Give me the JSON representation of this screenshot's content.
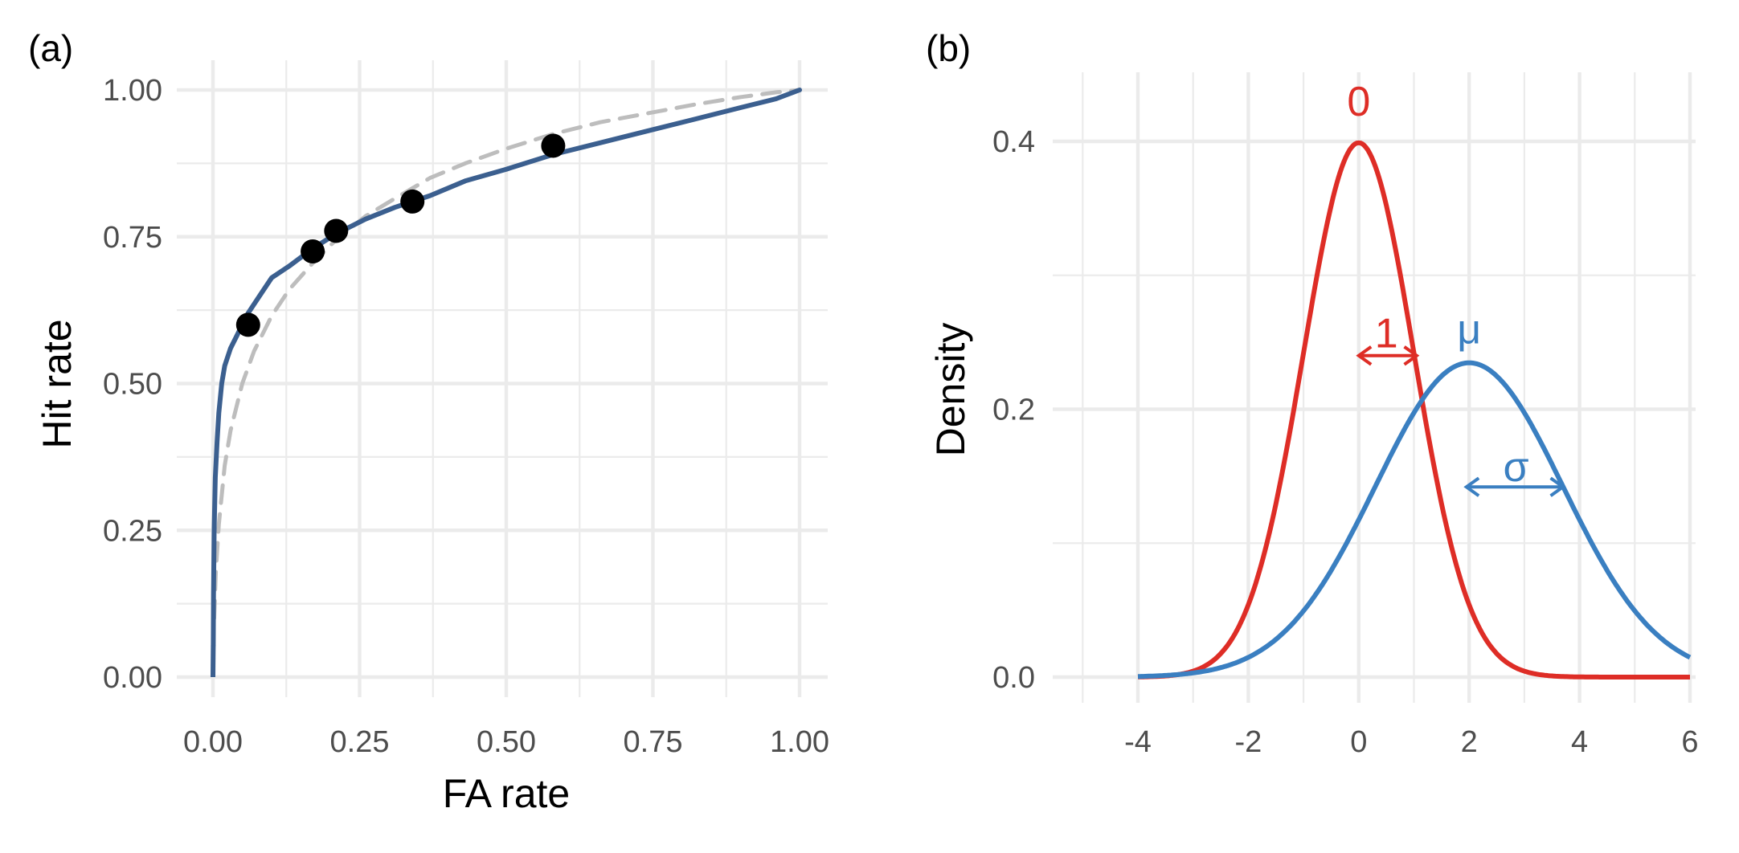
{
  "chart_data": [
    {
      "panel_tag": "(a)",
      "type": "line",
      "xlabel": "FA rate",
      "ylabel": "Hit rate",
      "xlim": [
        0,
        1
      ],
      "ylim": [
        0,
        1
      ],
      "x_ticks": [
        "0.00",
        "0.25",
        "0.50",
        "0.75",
        "1.00"
      ],
      "y_ticks": [
        "0.00",
        "0.25",
        "0.50",
        "0.75",
        "1.00"
      ],
      "grid": true,
      "colors": {
        "fitted": "#3b5f8f",
        "dashed": "#bdbdbd",
        "points": "#000000"
      },
      "series": [
        {
          "style": "solid",
          "color": "#3b5f8f",
          "x": [
            0.0005,
            0.001,
            0.002,
            0.004,
            0.007,
            0.01,
            0.015,
            0.02,
            0.03,
            0.04,
            0.05,
            0.06,
            0.08,
            0.1,
            0.13,
            0.17,
            0.21,
            0.26,
            0.31,
            0.37,
            0.43,
            0.5,
            0.58,
            0.66,
            0.74,
            0.82,
            0.9,
            0.96,
            1.0
          ],
          "y": [
            0.054,
            0.14,
            0.25,
            0.34,
            0.4,
            0.45,
            0.5,
            0.53,
            0.56,
            0.58,
            0.6,
            0.62,
            0.65,
            0.68,
            0.7,
            0.73,
            0.755,
            0.78,
            0.8,
            0.82,
            0.845,
            0.865,
            0.89,
            0.91,
            0.93,
            0.95,
            0.97,
            0.985,
            1.0
          ]
        },
        {
          "style": "dashed",
          "color": "#bdbdbd",
          "x": [
            0.002,
            0.005,
            0.01,
            0.02,
            0.03,
            0.05,
            0.07,
            0.1,
            0.13,
            0.17,
            0.21,
            0.26,
            0.31,
            0.37,
            0.43,
            0.5,
            0.58,
            0.66,
            0.74,
            0.82,
            0.9,
            0.96,
            1.0
          ],
          "y": [
            0.1,
            0.18,
            0.26,
            0.36,
            0.42,
            0.5,
            0.555,
            0.615,
            0.66,
            0.705,
            0.745,
            0.785,
            0.815,
            0.85,
            0.875,
            0.9,
            0.925,
            0.945,
            0.96,
            0.975,
            0.988,
            0.996,
            1.0
          ]
        }
      ],
      "points": {
        "x": [
          0.06,
          0.17,
          0.21,
          0.34,
          0.58
        ],
        "y": [
          0.6,
          0.725,
          0.76,
          0.81,
          0.905
        ]
      }
    },
    {
      "panel_tag": "(b)",
      "type": "line",
      "xlabel": "",
      "ylabel": "Density",
      "xlim": [
        -5,
        6.1
      ],
      "ylim": [
        -0.01,
        0.44
      ],
      "x_ticks": [
        "-4",
        "-2",
        "0",
        "2",
        "4",
        "6"
      ],
      "y_ticks": [
        "0.0",
        "0.2",
        "0.4"
      ],
      "grid": true,
      "series": [
        {
          "name": "0",
          "color": "#de2d26",
          "mean": 0,
          "sd": 1,
          "x_range": [
            -4,
            6
          ]
        },
        {
          "name": "μ",
          "color": "#3a7fc1",
          "mean": 2,
          "sd": 1.7,
          "x_range": [
            -4,
            6
          ]
        }
      ],
      "annotations": [
        {
          "text": "0",
          "color": "#de2d26",
          "x": 0,
          "y": 0.43
        },
        {
          "text": "1",
          "color": "#de2d26",
          "x": 0.5,
          "y": 0.257
        },
        {
          "text": "μ",
          "color": "#3a7fc1",
          "x": 2,
          "y": 0.26
        },
        {
          "text": "σ",
          "color": "#3a7fc1",
          "x": 2.85,
          "y": 0.157
        }
      ],
      "arrows": [
        {
          "color": "#de2d26",
          "x0": 0,
          "x1": 1.05,
          "y": 0.24
        },
        {
          "color": "#3a7fc1",
          "x0": 1.95,
          "x1": 3.7,
          "y": 0.142
        }
      ]
    }
  ]
}
